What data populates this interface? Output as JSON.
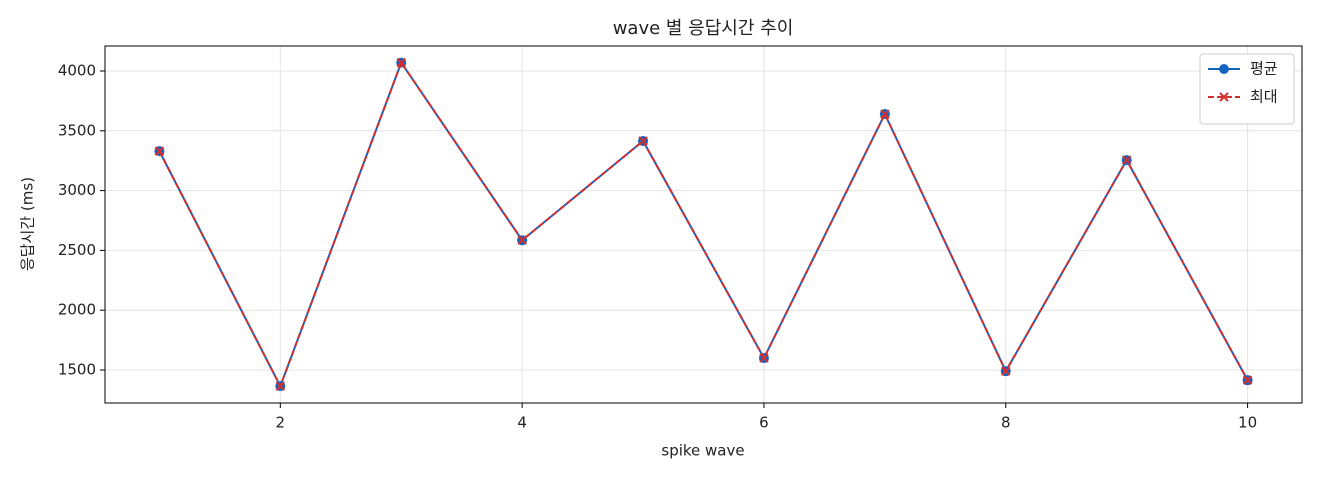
{
  "chart_data": {
    "type": "line",
    "title": "wave 별 응답시간 추이",
    "x_label": "spike wave",
    "y_label": "응답시간 (ms)",
    "x": [
      1,
      2,
      3,
      4,
      5,
      6,
      7,
      8,
      9,
      10
    ],
    "series": [
      {
        "name": "평균",
        "color": "#1565c0",
        "marker": "circle",
        "dash": false,
        "values": [
          3330,
          1365,
          4070,
          2585,
          3415,
          1600,
          3640,
          1490,
          3255,
          1415
        ]
      },
      {
        "name": "최대",
        "color": "#d32f2f",
        "marker": "x",
        "dash": true,
        "values": [
          3330,
          1365,
          4070,
          2585,
          3415,
          1600,
          3640,
          1490,
          3255,
          1415
        ]
      }
    ],
    "xlim": [
      0.55,
      10.45
    ],
    "xticks": [
      2,
      4,
      6,
      8,
      10
    ],
    "ylim": [
      1224,
      4209
    ],
    "yticks": [
      1500,
      2000,
      2500,
      3000,
      3500,
      4000
    ],
    "grid": true,
    "legend": "upper right"
  }
}
